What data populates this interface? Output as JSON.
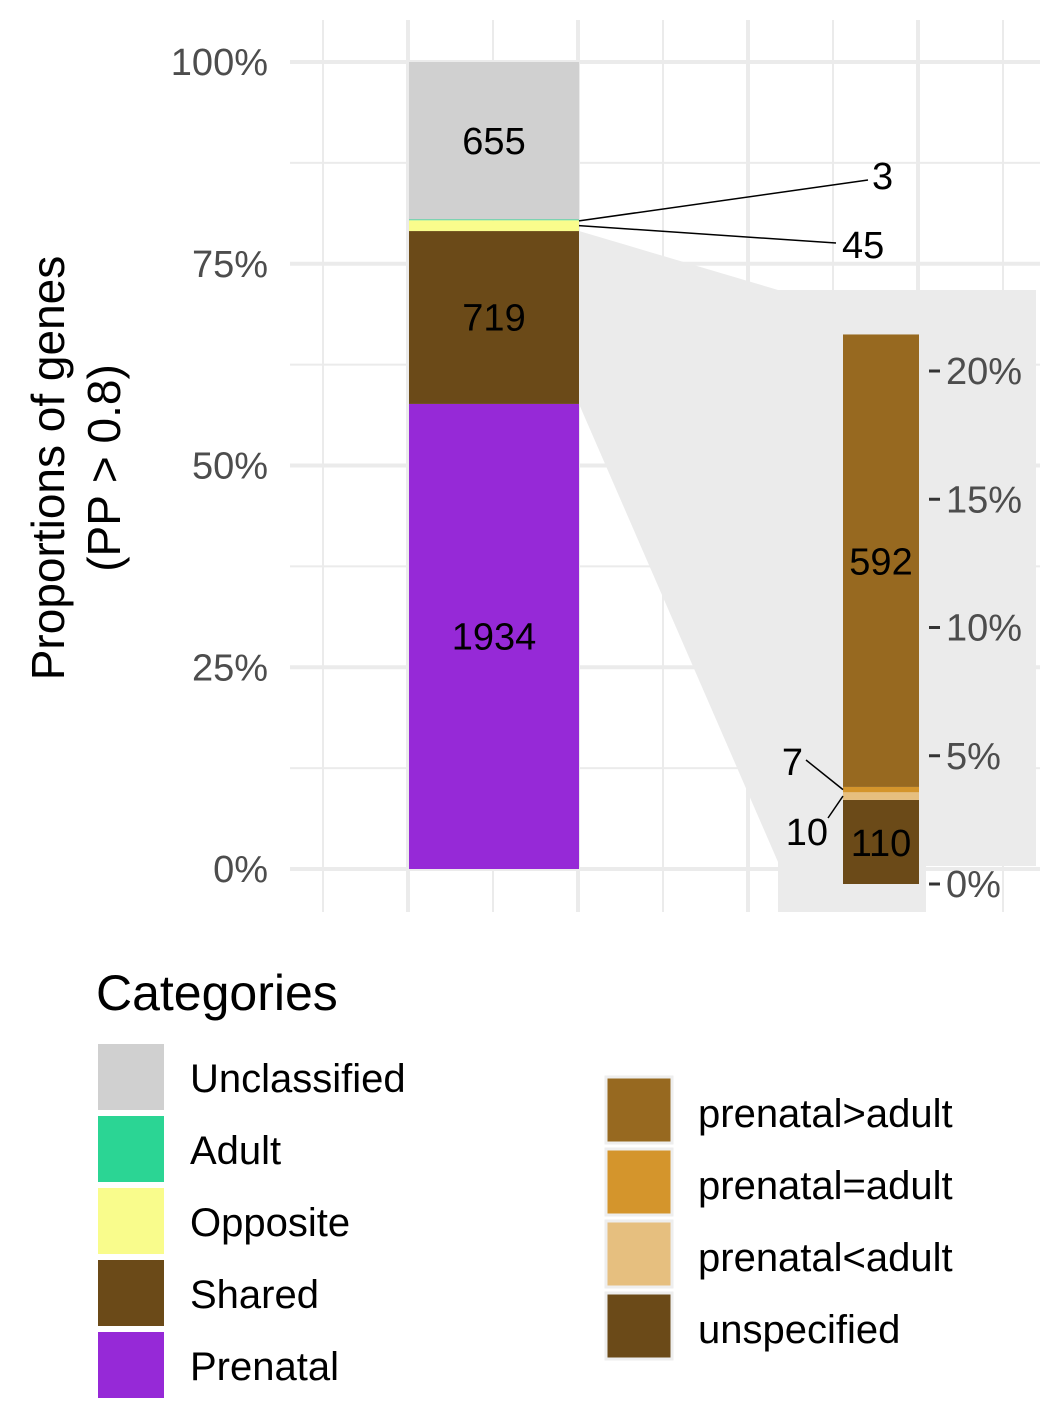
{
  "chart_data": [
    {
      "type": "bar",
      "stacked": true,
      "ylabel_line1": "Proportions of genes",
      "ylabel_line2": "(PP > 0.8)",
      "ylim": [
        0,
        100
      ],
      "yticks": [
        "0%",
        "25%",
        "50%",
        "75%",
        "100%"
      ],
      "grid": true,
      "segments": [
        {
          "category": "Prenatal",
          "count": 1934,
          "label": "1934",
          "color": "#9629D7"
        },
        {
          "category": "Shared",
          "count": 719,
          "label": "719",
          "color": "#6B4A18"
        },
        {
          "category": "Opposite",
          "count": 45,
          "label": "45",
          "color": "#F9FC8C"
        },
        {
          "category": "Adult",
          "count": 3,
          "label": "3",
          "color": "#2BD594"
        },
        {
          "category": "Unclassified",
          "count": 655,
          "label": "655",
          "color": "#D0D0D0"
        }
      ]
    },
    {
      "type": "bar",
      "stacked": true,
      "title": "",
      "ylim": [
        0,
        22.5
      ],
      "yticks": [
        "0%",
        "5%",
        "10%",
        "15%",
        "20%"
      ],
      "segments": [
        {
          "category": "unspecified",
          "count": 110,
          "label": "110",
          "color": "#6B4A18"
        },
        {
          "category": "prenatal<adult",
          "count": 10,
          "label": "10",
          "color": "#E6BF7F"
        },
        {
          "category": "prenatal=adult",
          "count": 7,
          "label": "7",
          "color": "#D4952C"
        },
        {
          "category": "prenatal>adult",
          "count": 592,
          "label": "592",
          "color": "#976920"
        }
      ]
    }
  ],
  "legend": {
    "title": "Categories",
    "left_items": [
      {
        "label": "Unclassified",
        "color": "#D0D0D0"
      },
      {
        "label": "Adult",
        "color": "#2BD594"
      },
      {
        "label": "Opposite",
        "color": "#F9FC8C"
      },
      {
        "label": "Shared",
        "color": "#6B4A18"
      },
      {
        "label": "Prenatal",
        "color": "#9629D7"
      }
    ],
    "right_items": [
      {
        "label": "prenatal>adult",
        "color": "#976920"
      },
      {
        "label": "prenatal=adult",
        "color": "#D4952C"
      },
      {
        "label": "prenatal<adult",
        "color": "#E6BF7F"
      },
      {
        "label": "unspecified",
        "color": "#6B4A18"
      }
    ]
  },
  "colors": {
    "grid": "#EBEBEB",
    "zoom_panel": "#EBEBEB",
    "tick_text": "#4D4D4D"
  }
}
